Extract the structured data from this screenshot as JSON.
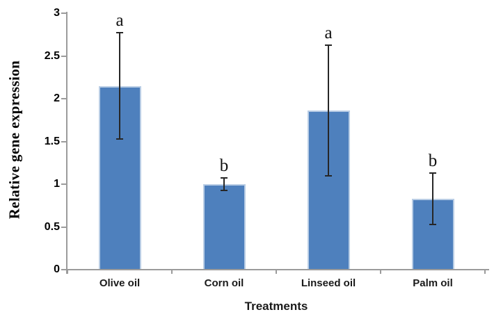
{
  "chart_data": {
    "type": "bar",
    "title": "",
    "xlabel": "Treatments",
    "ylabel": "Relative gene expression",
    "categories": [
      "Olive oil",
      "Corn oil",
      "Linseed oil",
      "Palm oil"
    ],
    "series": [
      {
        "name": "Relative gene expression",
        "values": [
          2.15,
          1.0,
          1.86,
          0.83
        ],
        "error_low": [
          1.53,
          0.93,
          1.1,
          0.53
        ],
        "error_high": [
          2.77,
          1.07,
          2.63,
          1.13
        ],
        "sig_letters": [
          "a",
          "b",
          "a",
          "b"
        ]
      }
    ],
    "ylim": [
      0,
      3
    ],
    "yticks": [
      0,
      0.5,
      1,
      1.5,
      2,
      2.5,
      3
    ],
    "grid": false,
    "legend": "none",
    "colors": {
      "bar_fill": "#4E80BD",
      "bar_border": "#B9CDE5",
      "axis_line": "#9B9B9B",
      "error_bar": "#262626",
      "text": "#000000"
    }
  }
}
